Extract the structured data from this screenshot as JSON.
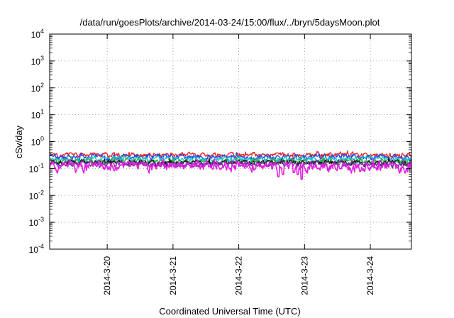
{
  "chart_data": {
    "type": "line",
    "title": "/data/run/goesPlots/archive/2014-03-24/15:00/flux/../bryn/5daysMoon.plot",
    "xlabel": "Coordinated Universal Time (UTC)",
    "ylabel": "cSv/day",
    "yscale": "log",
    "ylim": [
      0.0001,
      10000
    ],
    "yticks": [
      {
        "value": 0.0001,
        "base": "10",
        "exp": "-4"
      },
      {
        "value": 0.001,
        "base": "10",
        "exp": "-3"
      },
      {
        "value": 0.01,
        "base": "10",
        "exp": "-2"
      },
      {
        "value": 0.1,
        "base": "10",
        "exp": "-1"
      },
      {
        "value": 1,
        "base": "10",
        "exp": "0"
      },
      {
        "value": 10,
        "base": "10",
        "exp": "1"
      },
      {
        "value": 100,
        "base": "10",
        "exp": "2"
      },
      {
        "value": 1000,
        "base": "10",
        "exp": "3"
      },
      {
        "value": 10000,
        "base": "10",
        "exp": "4"
      }
    ],
    "xlim": [
      "2014-03-19T03:00",
      "2014-03-24T15:00"
    ],
    "xticks": [
      {
        "value": "2014-03-20T00:00",
        "label": "2014-3-20"
      },
      {
        "value": "2014-03-21T00:00",
        "label": "2014-3-21"
      },
      {
        "value": "2014-03-22T00:00",
        "label": "2014-3-22"
      },
      {
        "value": "2014-03-23T00:00",
        "label": "2014-3-23"
      },
      {
        "value": "2014-03-24T00:00",
        "label": "2014-3-24"
      }
    ],
    "grid": true,
    "legend": "none",
    "series": [
      {
        "color": "#e8262a",
        "base": 0.32,
        "amp": 0.13
      },
      {
        "color": "#2848e8",
        "base": 0.27,
        "amp": 0.12
      },
      {
        "color": "#19c6cf",
        "base": 0.22,
        "amp": 0.1
      },
      {
        "color": "#34a84a",
        "base": 0.185,
        "amp": 0.08
      },
      {
        "color": "#1a1a1a",
        "base": 0.165,
        "amp": 0.07
      },
      {
        "color": "#7a2fa8",
        "base": 0.145,
        "amp": 0.07
      },
      {
        "color": "#e020e0",
        "base": 0.122,
        "amp": 0.09,
        "dips": [
          {
            "t": "2014-03-22T14:30",
            "v": 0.05
          },
          {
            "t": "2014-03-22T16:00",
            "v": 0.06
          },
          {
            "t": "2014-03-22T20:00",
            "v": 0.07
          },
          {
            "t": "2014-03-22T21:30",
            "v": 0.06
          },
          {
            "t": "2014-03-22T23:00",
            "v": 0.04
          }
        ]
      }
    ]
  }
}
